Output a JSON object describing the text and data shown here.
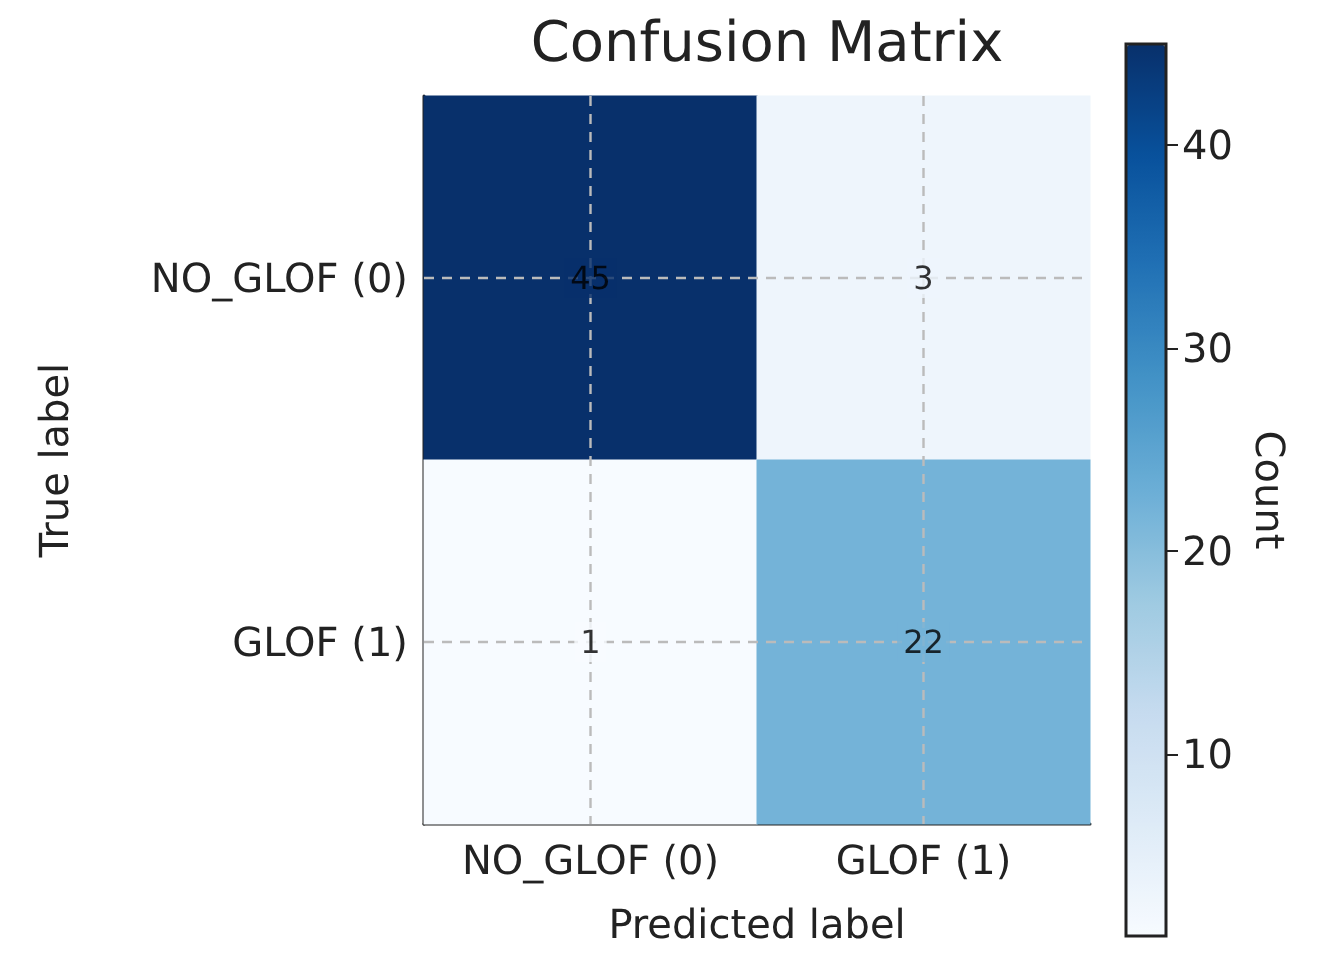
{
  "chart_data": {
    "type": "heatmap",
    "title": "Confusion Matrix",
    "xlabel": "Predicted label",
    "ylabel": "True label",
    "clabel": "Count",
    "categories": [
      "NO_GLOF (0)",
      "GLOF (1)"
    ],
    "y_categories": [
      "NO_GLOF (0)",
      "GLOF (1)"
    ],
    "cells": [
      [
        45,
        3
      ],
      [
        1,
        22
      ]
    ],
    "clim": [
      1,
      45
    ],
    "cticks": [
      10,
      20,
      30,
      40
    ],
    "data_labels": true,
    "grid": true
  }
}
